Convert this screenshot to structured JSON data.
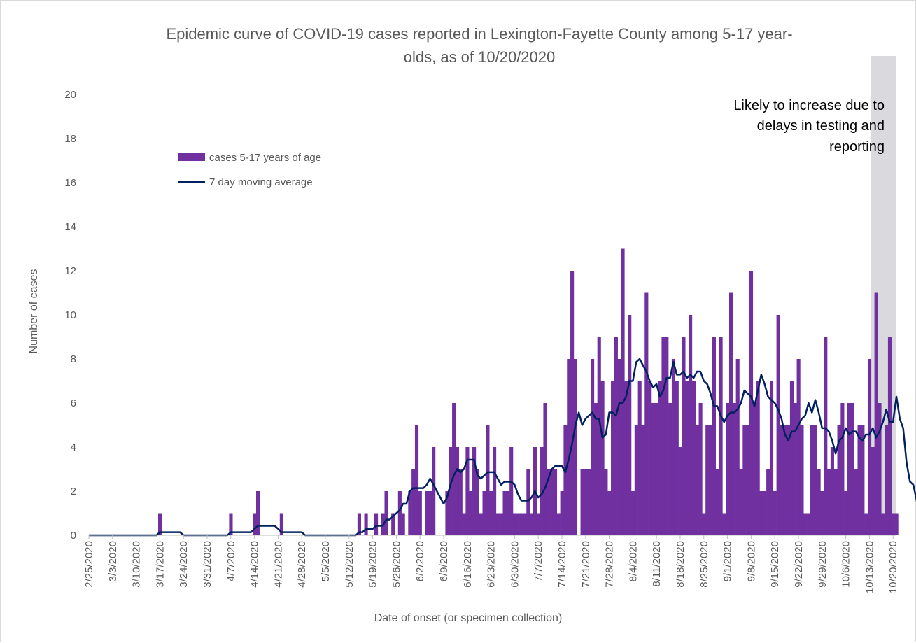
{
  "chart_data": {
    "type": "bar",
    "title": "Epidemic curve of COVID-19 cases reported in Lexington-Fayette County among 5-17 year-olds, as of 10/20/2020",
    "title_lines": [
      "Epidemic curve of COVID-19 cases reported in Lexington-Fayette County among 5-17 year-",
      "olds, as of 10/20/2020"
    ],
    "xlabel": "Date of onset (or specimen collection)",
    "ylabel": "Number of cases",
    "ylim": [
      0,
      20
    ],
    "yticks": [
      "0",
      "2",
      "4",
      "6",
      "8",
      "10",
      "12",
      "14",
      "16",
      "18",
      "20"
    ],
    "x_start": "2/25/2020",
    "x_end": "10/20/2020",
    "xtick_labels": [
      "2/25/2020",
      "3/3/2020",
      "3/10/2020",
      "3/17/2020",
      "3/24/2020",
      "3/31/2020",
      "4/7/2020",
      "4/14/2020",
      "4/21/2020",
      "4/28/2020",
      "5/5/2020",
      "5/12/2020",
      "5/19/2020",
      "5/26/2020",
      "6/2/2020",
      "6/9/2020",
      "6/16/2020",
      "6/23/2020",
      "6/30/2020",
      "7/7/2020",
      "7/14/2020",
      "7/21/2020",
      "7/28/2020",
      "8/4/2020",
      "8/11/2020",
      "8/18/2020",
      "8/25/2020",
      "9/1/2020",
      "9/8/2020",
      "9/15/2020",
      "9/22/2020",
      "9/29/2020",
      "10/6/2020",
      "10/13/2020",
      "10/20/2020"
    ],
    "grid": false,
    "legend_position": "top-left",
    "series": [
      {
        "name": "cases 5-17 years of age",
        "kind": "bar",
        "color": "#7030a0",
        "values": [
          0,
          0,
          0,
          0,
          0,
          0,
          0,
          0,
          0,
          0,
          0,
          0,
          0,
          0,
          0,
          0,
          0,
          0,
          0,
          0,
          0,
          1,
          0,
          0,
          0,
          0,
          0,
          0,
          0,
          0,
          0,
          0,
          0,
          0,
          0,
          0,
          0,
          0,
          0,
          0,
          0,
          0,
          1,
          0,
          0,
          0,
          0,
          0,
          0,
          1,
          2,
          0,
          0,
          0,
          0,
          0,
          0,
          1,
          0,
          0,
          0,
          0,
          0,
          0,
          0,
          0,
          0,
          0,
          0,
          0,
          0,
          0,
          0,
          0,
          0,
          0,
          0,
          0,
          0,
          0,
          1,
          0,
          1,
          0,
          0,
          1,
          0,
          1,
          2,
          0,
          1,
          0,
          2,
          1,
          0,
          2,
          3,
          5,
          2,
          0,
          2,
          2,
          4,
          0,
          0,
          0,
          2,
          4,
          6,
          4,
          3,
          1,
          4,
          2,
          4,
          3,
          1,
          2,
          5,
          2,
          4,
          1,
          1,
          2,
          2,
          4,
          1,
          1,
          1,
          1,
          3,
          1,
          4,
          1,
          4,
          6,
          3,
          3,
          3,
          1,
          2,
          5,
          8,
          12,
          8,
          0,
          3,
          3,
          3,
          8,
          6,
          9,
          7,
          3,
          2,
          7,
          9,
          8,
          13,
          7,
          10,
          2,
          5,
          7,
          5,
          11,
          7,
          6,
          6,
          7,
          9,
          9,
          6,
          8,
          7,
          4,
          9,
          7,
          10,
          7,
          5,
          6,
          1,
          5,
          5,
          9,
          3,
          9,
          1,
          6,
          11,
          6,
          8,
          3,
          5,
          5,
          12,
          6,
          7,
          2,
          2,
          3,
          7,
          2,
          10,
          5,
          5,
          5,
          7,
          6,
          8,
          5,
          1,
          1,
          5,
          5,
          3,
          2,
          9,
          3,
          4,
          3,
          5,
          6,
          2,
          6,
          6,
          3,
          5,
          5,
          1,
          8,
          4,
          11,
          6,
          1,
          5,
          9,
          1,
          1
        ]
      },
      {
        "name": "7 day moving average",
        "kind": "line",
        "color": "#002060",
        "values": [
          0,
          0,
          0,
          0,
          0,
          0,
          0,
          0,
          0,
          0,
          0,
          0,
          0,
          0,
          0,
          0,
          0,
          0,
          0,
          0,
          0,
          0.14,
          0.14,
          0.14,
          0.14,
          0.14,
          0.14,
          0.14,
          0,
          0,
          0,
          0,
          0,
          0,
          0,
          0,
          0,
          0,
          0,
          0,
          0,
          0,
          0.14,
          0.14,
          0.14,
          0.14,
          0.14,
          0.14,
          0.14,
          0.29,
          0.43,
          0.43,
          0.43,
          0.43,
          0.43,
          0.43,
          0.29,
          0.14,
          0.14,
          0.14,
          0.14,
          0.14,
          0.14,
          0.14,
          0,
          0,
          0,
          0,
          0,
          0,
          0,
          0,
          0,
          0,
          0,
          0,
          0,
          0,
          0,
          0,
          0.14,
          0.14,
          0.29,
          0.29,
          0.29,
          0.43,
          0.43,
          0.43,
          0.71,
          0.71,
          0.86,
          1,
          1.14,
          1.43,
          1.43,
          2,
          2.14,
          2.14,
          2.14,
          2.14,
          2.29,
          2.57,
          2.29,
          2,
          1.71,
          1.43,
          1.71,
          2.29,
          2.71,
          3,
          2.86,
          3,
          3.43,
          3.43,
          3.43,
          2.71,
          2.57,
          2.71,
          2.86,
          2.86,
          2.86,
          2.57,
          2.29,
          2.43,
          2.43,
          2.43,
          2.29,
          1.86,
          1.57,
          1.57,
          1.57,
          1.71,
          2,
          1.71,
          1.86,
          2.14,
          2.57,
          3,
          3.14,
          3.14,
          3.14,
          2.86,
          3.43,
          4.14,
          5,
          5.57,
          5,
          5.29,
          5.43,
          5.57,
          5.29,
          5.29,
          4.43,
          4.57,
          5.57,
          5.57,
          5.43,
          6,
          6,
          6.29,
          7,
          7,
          7.86,
          8,
          7.71,
          7.43,
          7,
          6.71,
          6.86,
          6.29,
          6.57,
          7.14,
          7.14,
          7.86,
          7.29,
          7.29,
          7.43,
          7.14,
          7.29,
          7.14,
          7.43,
          7.43,
          7,
          6.86,
          6.43,
          5.86,
          5.86,
          5.43,
          5.14,
          5.43,
          5.57,
          5.57,
          5.71,
          6,
          6.57,
          6.43,
          6.29,
          5.86,
          6.57,
          7.29,
          6.86,
          6.29,
          6.14,
          6,
          5.71,
          5.29,
          4.57,
          4.29,
          4.71,
          4.71,
          5,
          5.29,
          5.43,
          6,
          5.57,
          6.14,
          5.57,
          4.86,
          4.86,
          4.71,
          4.29,
          3.71,
          4.29,
          4.43,
          4.86,
          4.57,
          4.71,
          4.71,
          4.43,
          4.29,
          4.57,
          4.57,
          4.86,
          4.43,
          4.71,
          5.14,
          5.71,
          5.14,
          5.14,
          6.29,
          5.29,
          4.86,
          3.29,
          2.43,
          2.29,
          1.57,
          0.29
        ]
      }
    ],
    "annotation": {
      "lines": [
        "Likely to increase due to",
        "delays in testing and",
        "reporting"
      ],
      "shade_from": "10/14/2020",
      "shade_color": "#d9d9de"
    }
  }
}
